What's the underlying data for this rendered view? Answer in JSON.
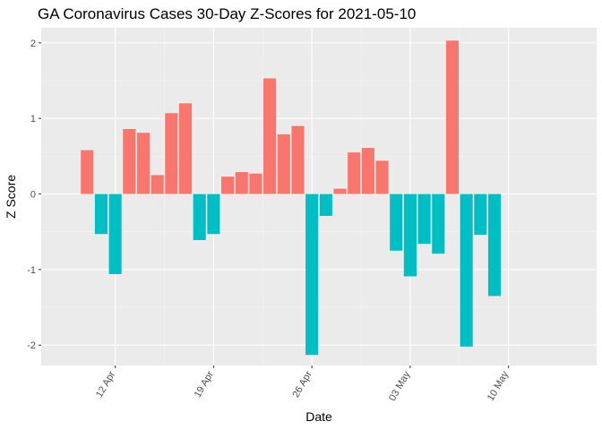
{
  "chart_data": {
    "type": "bar",
    "title": "GA Coronavirus Cases 30-Day Z-Scores for 2021-05-10",
    "xlabel": "Date",
    "ylabel": "Z Score",
    "ylim": [
      -2.27,
      2.2
    ],
    "xlim_day_index": [
      -3.27,
      36.27
    ],
    "grid": true,
    "start_date": "2021-04-10",
    "x_ticks": [
      {
        "label": "12 Apr",
        "day": 2
      },
      {
        "label": "19 Apr",
        "day": 9
      },
      {
        "label": "26 Apr",
        "day": 16
      },
      {
        "label": "03 May",
        "day": 23
      },
      {
        "label": "10 May",
        "day": 30
      }
    ],
    "y_ticks": [
      {
        "label": "-2",
        "value": -2
      },
      {
        "label": "-1",
        "value": -1
      },
      {
        "label": "0",
        "value": 0
      },
      {
        "label": "1",
        "value": 1
      },
      {
        "label": "2",
        "value": 2
      }
    ],
    "categories": [
      "2021-04-10",
      "2021-04-11",
      "2021-04-12",
      "2021-04-13",
      "2021-04-14",
      "2021-04-15",
      "2021-04-16",
      "2021-04-17",
      "2021-04-18",
      "2021-04-19",
      "2021-04-20",
      "2021-04-21",
      "2021-04-22",
      "2021-04-23",
      "2021-04-24",
      "2021-04-25",
      "2021-04-26",
      "2021-04-27",
      "2021-04-28",
      "2021-04-29",
      "2021-04-30",
      "2021-05-01",
      "2021-05-02",
      "2021-05-03",
      "2021-05-04",
      "2021-05-05",
      "2021-05-06",
      "2021-05-07",
      "2021-05-08",
      "2021-05-09"
    ],
    "values": [
      0.58,
      -0.53,
      -1.06,
      0.86,
      0.81,
      0.25,
      1.07,
      1.2,
      -0.61,
      -0.53,
      0.23,
      0.29,
      0.27,
      1.53,
      0.79,
      0.9,
      -2.13,
      -0.29,
      0.07,
      0.55,
      0.61,
      0.44,
      -0.75,
      -1.09,
      -0.66,
      -0.79,
      2.03,
      -2.02,
      -0.54,
      -1.35
    ],
    "colors": {
      "positive": "#F8766D",
      "negative": "#00BFC4",
      "panel": "#EBEBEB",
      "grid_major": "#FFFFFF",
      "grid_minor": "#F5F5F5"
    }
  }
}
